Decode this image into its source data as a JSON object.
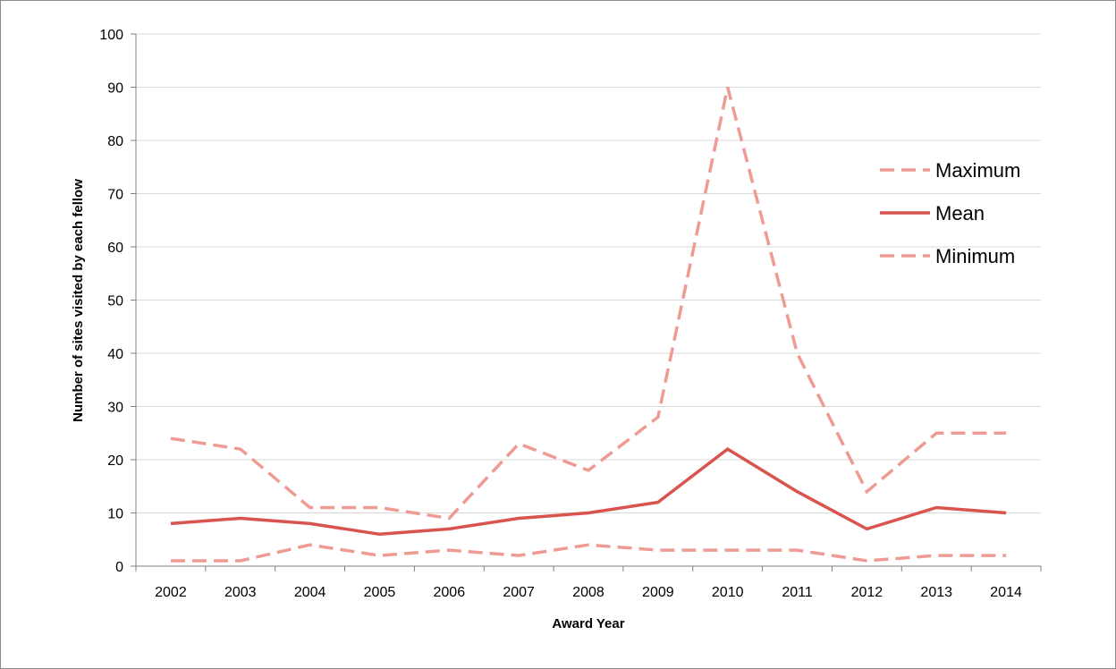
{
  "chart_data": {
    "type": "line",
    "categories": [
      "2002",
      "2003",
      "2004",
      "2005",
      "2006",
      "2007",
      "2008",
      "2009",
      "2010",
      "2011",
      "2012",
      "2013",
      "2014"
    ],
    "series": [
      {
        "name": "Maximum",
        "values": [
          24,
          22,
          11,
          11,
          9,
          23,
          18,
          28,
          90,
          40,
          14,
          25,
          25
        ],
        "color": "#ee9b93",
        "dash": "dashed"
      },
      {
        "name": "Mean",
        "values": [
          8,
          9,
          8,
          6,
          7,
          9,
          10,
          12,
          22,
          14,
          7,
          11,
          10
        ],
        "color": "#d9534f",
        "dash": "solid"
      },
      {
        "name": "Minimum",
        "values": [
          1,
          1,
          4,
          2,
          3,
          2,
          4,
          3,
          3,
          3,
          1,
          2,
          2
        ],
        "color": "#ee9b93",
        "dash": "dashed"
      }
    ],
    "title": "",
    "xlabel": "Award Year",
    "ylabel": "Number of sites visited by each fellow",
    "ylim": [
      0,
      100
    ],
    "yticks": [
      0,
      10,
      20,
      30,
      40,
      50,
      60,
      70,
      80,
      90,
      100
    ],
    "grid": true,
    "legend": "right"
  }
}
